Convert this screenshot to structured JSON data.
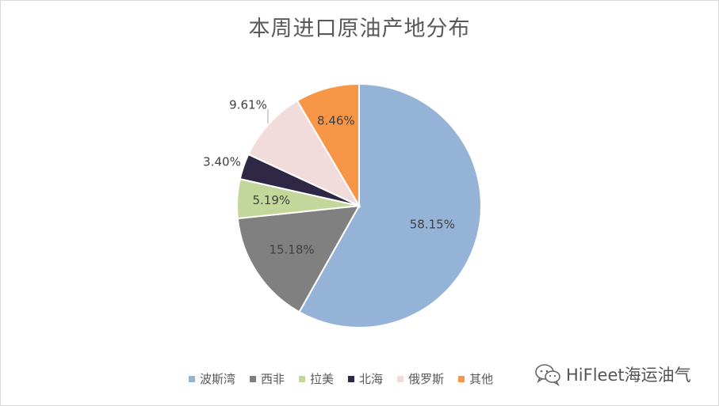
{
  "chart_data": {
    "type": "pie",
    "title": "本周进口原油产地分布",
    "categories": [
      "波斯湾",
      "西非",
      "拉美",
      "北海",
      "俄罗斯",
      "其他"
    ],
    "values": [
      58.15,
      15.18,
      5.19,
      3.4,
      9.61,
      8.46
    ],
    "labels": [
      "58.15%",
      "15.18%",
      "5.19%",
      "3.40%",
      "9.61%",
      "8.46%"
    ],
    "colors": [
      "#95b3d7",
      "#808080",
      "#c4d79b",
      "#2e2746",
      "#f2dcdb",
      "#f79646"
    ],
    "legend_position": "bottom"
  },
  "watermark": {
    "text": "HiFleet海运油气",
    "icon": "wechat-icon"
  }
}
